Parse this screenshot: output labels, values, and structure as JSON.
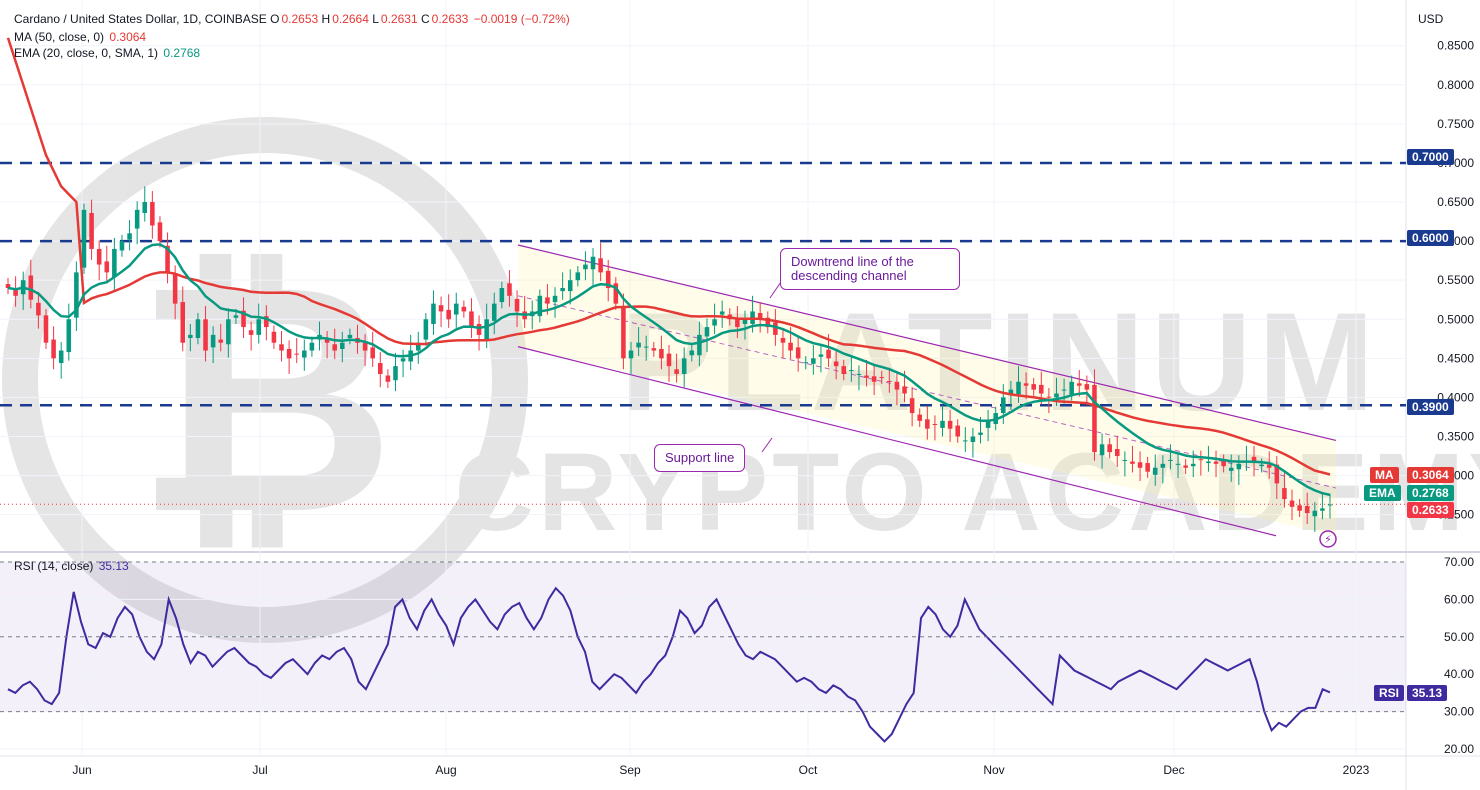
{
  "header": {
    "symbol": "Cardano / United States Dollar, 1D, COINBASE",
    "open_label": "O",
    "open": "0.2653",
    "high_label": "H",
    "high": "0.2664",
    "low_label": "L",
    "low": "0.2631",
    "close_label": "C",
    "close": "0.2633",
    "change": "−0.0019 (−0.72%)"
  },
  "indicators": {
    "ma_label": "MA (50, close, 0)",
    "ma_value": "0.3064",
    "ema_label": "EMA (20, close, 0, SMA, 1)",
    "ema_value": "0.2768",
    "rsi_label": "RSI (14, close)",
    "rsi_value": "35.13"
  },
  "currency": "USD",
  "watermark": {
    "line1": "PLATINUM",
    "line2": "CRYPTO ACADEMY"
  },
  "annotations": {
    "downtrend": "Downtrend line of the descending channel",
    "support": "Support line"
  },
  "tags": {
    "level_070": "0.7000",
    "level_060": "0.6000",
    "level_039": "0.3900",
    "ma_tag": "MA",
    "ma_val": "0.3064",
    "ema_tag": "EMA",
    "ema_val": "0.2768",
    "last_price": "0.2633",
    "rsi_tag": "RSI",
    "rsi_val": "35.13"
  },
  "colors": {
    "up": "#089981",
    "down": "#f23645",
    "ma": "#e53935",
    "ema": "#089981",
    "rsi": "#3f2aa0",
    "channel": "#9c27b0",
    "hline": "#1a3a8f"
  },
  "chart_data": [
    {
      "type": "candlestick",
      "title": "Cardano / United States Dollar, 1D, COINBASE",
      "x_ticks": [
        "Jun",
        "Jul",
        "Aug",
        "Sep",
        "Oct",
        "Nov",
        "Dec",
        "2023"
      ],
      "y_ticks": [
        "0.2500",
        "0.3000",
        "0.3500",
        "0.4000",
        "0.4500",
        "0.5000",
        "0.5500",
        "0.6000",
        "0.6500",
        "0.7000",
        "0.7500",
        "0.8000",
        "0.8500"
      ],
      "ylim": [
        0.215,
        0.865
      ],
      "horizontal_levels": [
        0.7,
        0.6,
        0.39
      ],
      "close_approx": [
        0.54,
        0.53,
        0.55,
        0.525,
        0.505,
        0.47,
        0.45,
        0.46,
        0.5,
        0.56,
        0.64,
        0.59,
        0.57,
        0.56,
        0.59,
        0.6,
        0.61,
        0.64,
        0.65,
        0.62,
        0.6,
        0.56,
        0.52,
        0.47,
        0.48,
        0.5,
        0.46,
        0.48,
        0.47,
        0.5,
        0.505,
        0.49,
        0.48,
        0.5,
        0.49,
        0.47,
        0.46,
        0.45,
        0.455,
        0.46,
        0.47,
        0.48,
        0.47,
        0.46,
        0.47,
        0.48,
        0.47,
        0.46,
        0.45,
        0.43,
        0.42,
        0.44,
        0.45,
        0.46,
        0.47,
        0.5,
        0.52,
        0.51,
        0.5,
        0.52,
        0.51,
        0.49,
        0.48,
        0.5,
        0.52,
        0.54,
        0.53,
        0.51,
        0.5,
        0.51,
        0.53,
        0.52,
        0.53,
        0.54,
        0.55,
        0.56,
        0.57,
        0.58,
        0.56,
        0.54,
        0.52,
        0.45,
        0.46,
        0.47,
        0.465,
        0.46,
        0.45,
        0.44,
        0.43,
        0.45,
        0.46,
        0.48,
        0.49,
        0.5,
        0.51,
        0.5,
        0.49,
        0.5,
        0.51,
        0.5,
        0.49,
        0.48,
        0.47,
        0.46,
        0.45,
        0.445,
        0.45,
        0.455,
        0.45,
        0.44,
        0.43,
        0.435,
        0.43,
        0.425,
        0.42,
        0.425,
        0.42,
        0.41,
        0.405,
        0.38,
        0.37,
        0.36,
        0.365,
        0.37,
        0.36,
        0.35,
        0.345,
        0.35,
        0.355,
        0.37,
        0.38,
        0.4,
        0.41,
        0.42,
        0.415,
        0.41,
        0.405,
        0.4,
        0.405,
        0.41,
        0.42,
        0.415,
        0.41,
        0.33,
        0.34,
        0.33,
        0.325,
        0.32,
        0.315,
        0.31,
        0.305,
        0.31,
        0.315,
        0.32,
        0.315,
        0.31,
        0.315,
        0.32,
        0.318,
        0.315,
        0.312,
        0.31,
        0.315,
        0.318,
        0.316,
        0.314,
        0.31,
        0.29,
        0.27,
        0.26,
        0.255,
        0.252,
        0.255,
        0.258,
        0.263
      ],
      "series": [
        {
          "name": "MA (50, close, 0)",
          "last": 0.3064
        },
        {
          "name": "EMA (20, close, 0, SMA, 1)",
          "last": 0.2768
        }
      ],
      "last_close": 0.2633
    },
    {
      "type": "line",
      "title": "RSI (14, close)",
      "y_ticks": [
        "20.00",
        "30.00",
        "40.00",
        "50.00",
        "60.00",
        "70.00"
      ],
      "ylim": [
        17,
        73
      ],
      "bands": [
        30,
        50,
        70
      ],
      "values": [
        36,
        35,
        37,
        38,
        36,
        33,
        32,
        35,
        50,
        62,
        54,
        48,
        47,
        51,
        50,
        55,
        58,
        56,
        50,
        46,
        44,
        48,
        60,
        55,
        48,
        43,
        46,
        45,
        42,
        44,
        46,
        47,
        45,
        43,
        42,
        40,
        39,
        41,
        43,
        44,
        42,
        40,
        43,
        45,
        44,
        46,
        47,
        44,
        38,
        36,
        40,
        44,
        48,
        58,
        60,
        55,
        52,
        57,
        60,
        56,
        53,
        48,
        55,
        58,
        60,
        57,
        54,
        52,
        56,
        58,
        59,
        55,
        52,
        55,
        60,
        63,
        61,
        57,
        50,
        46,
        38,
        36,
        38,
        40,
        39,
        37,
        35,
        38,
        40,
        43,
        45,
        50,
        57,
        55,
        51,
        53,
        58,
        60,
        56,
        52,
        48,
        45,
        44,
        46,
        45,
        44,
        42,
        40,
        38,
        39,
        38,
        36,
        35,
        37,
        36,
        34,
        33,
        30,
        26,
        24,
        22,
        24,
        28,
        32,
        35,
        55,
        58,
        56,
        52,
        50,
        53,
        60,
        56,
        52,
        50,
        48,
        46,
        44,
        42,
        40,
        38,
        36,
        34,
        32,
        45,
        43,
        41,
        40,
        39,
        38,
        37,
        36,
        38,
        39,
        40,
        41,
        40,
        39,
        38,
        37,
        36,
        38,
        40,
        42,
        44,
        43,
        42,
        41,
        42,
        43,
        44,
        38,
        30,
        25,
        27,
        26,
        28,
        30,
        31,
        31,
        36,
        35.13
      ],
      "last": 35.13
    }
  ]
}
